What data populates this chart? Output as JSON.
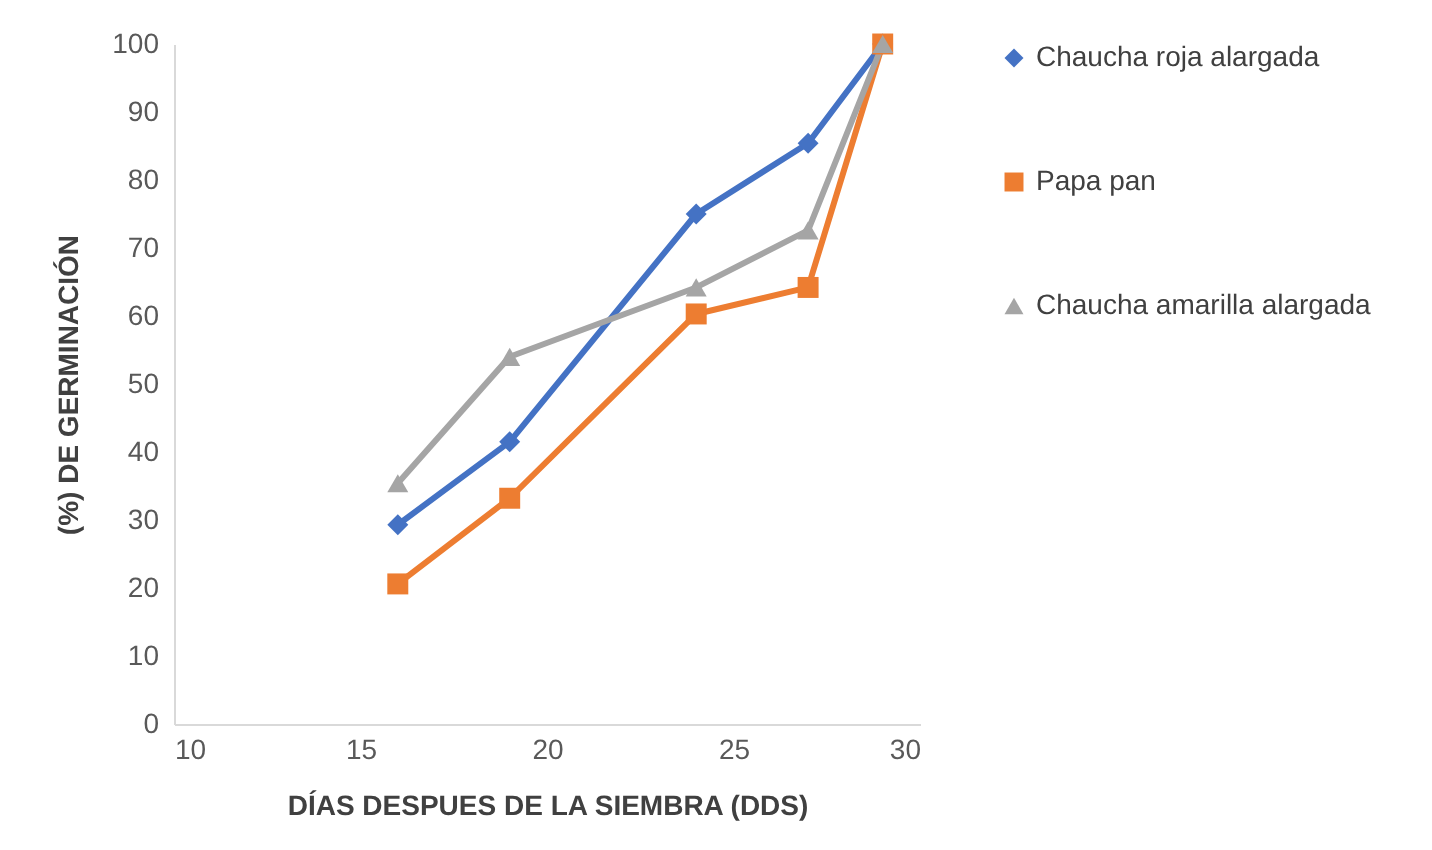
{
  "chart_data": {
    "type": "line",
    "xlabel": "DÍAS DESPUES DE LA SIEMBRA (DDS)",
    "ylabel": "(%) DE GERMINACIÓN",
    "x": [
      16,
      19,
      24,
      27,
      29
    ],
    "series": [
      {
        "name": "Chaucha roja alargada",
        "color": "#4472c4",
        "marker": "diamond",
        "values": [
          29.3,
          41.5,
          75,
          85.4,
          100
        ]
      },
      {
        "name": "Papa pan",
        "color": "#ed7d31",
        "marker": "square",
        "values": [
          20.6,
          33.2,
          60.3,
          64.2,
          100
        ]
      },
      {
        "name": "Chaucha amarilla alargada",
        "color": "#a5a5a5",
        "marker": "triangle",
        "values": [
          35.4,
          54,
          64.2,
          72.6,
          100
        ]
      }
    ],
    "xlim": [
      10,
      30
    ],
    "xticks": [
      10,
      15,
      20,
      25,
      30
    ],
    "ylim": [
      0,
      100
    ],
    "yticks": [
      0,
      10,
      20,
      30,
      40,
      50,
      60,
      70,
      80,
      90,
      100
    ],
    "grid": false,
    "legend": "right"
  }
}
